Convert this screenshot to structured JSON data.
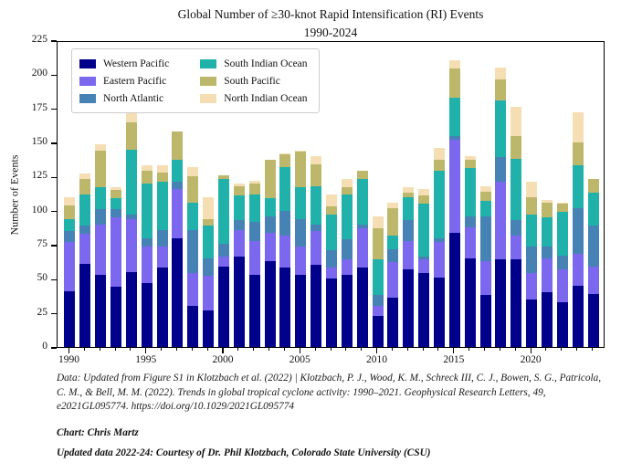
{
  "title": {
    "line1": "Global Number of ≥30-knot Rapid Intensification (RI) Events",
    "line2": "1990-2024"
  },
  "y_axis": {
    "label": "Number of Events",
    "min": 0,
    "max": 225,
    "tick_step": 25
  },
  "x_axis": {
    "major_ticks": [
      1990,
      1995,
      2000,
      2005,
      2010,
      2015,
      2020
    ]
  },
  "legend": {
    "position": "upper left",
    "items": [
      {
        "label": "Western Pacific",
        "color": "#00008b"
      },
      {
        "label": "Eastern Pacific",
        "color": "#7b68ee"
      },
      {
        "label": "North Atlantic",
        "color": "#4682b4"
      },
      {
        "label": "South Indian Ocean",
        "color": "#20b2aa"
      },
      {
        "label": "South Pacific",
        "color": "#bdb76b"
      },
      {
        "label": "North Indian Ocean",
        "color": "#f5deb3"
      }
    ]
  },
  "chart_data": {
    "type": "bar",
    "stacked": true,
    "title": "Global Number of ≥30-knot Rapid Intensification (RI) Events 1990-2024",
    "xlabel": "",
    "ylabel": "Number of Events",
    "ylim": [
      0,
      225
    ],
    "xlim": [
      1989.2,
      2024.8
    ],
    "grid": false,
    "legend_position": "upper left",
    "categories": [
      1990,
      1991,
      1992,
      1993,
      1994,
      1995,
      1996,
      1997,
      1998,
      1999,
      2000,
      2001,
      2002,
      2003,
      2004,
      2005,
      2006,
      2007,
      2008,
      2009,
      2010,
      2011,
      2012,
      2013,
      2014,
      2015,
      2016,
      2017,
      2018,
      2019,
      2020,
      2021,
      2022,
      2023,
      2024
    ],
    "series": [
      {
        "name": "Western Pacific",
        "color": "#00008b",
        "values": [
          41,
          61,
          53,
          44,
          55,
          47,
          58,
          80,
          30,
          27,
          59,
          66,
          53,
          63,
          58,
          53,
          60,
          50,
          53,
          58,
          23,
          36,
          57,
          54,
          51,
          84,
          65,
          38,
          64,
          64,
          35,
          40,
          33,
          45,
          39
        ]
      },
      {
        "name": "Eastern Pacific",
        "color": "#7b68ee",
        "values": [
          36,
          22,
          37,
          51,
          39,
          27,
          16,
          36,
          24,
          25,
          7,
          20,
          25,
          21,
          24,
          21,
          25,
          8,
          11,
          29,
          7,
          26,
          21,
          10,
          26,
          68,
          23,
          25,
          57,
          18,
          19,
          25,
          24,
          23,
          20
        ]
      },
      {
        "name": "North Atlantic",
        "color": "#4682b4",
        "values": [
          8,
          6,
          11,
          6,
          3,
          6,
          12,
          5,
          32,
          13,
          10,
          7,
          14,
          12,
          18,
          20,
          5,
          13,
          15,
          3,
          8,
          10,
          15,
          2,
          3,
          3,
          8,
          33,
          18,
          11,
          20,
          9,
          10,
          34,
          30
        ]
      },
      {
        "name": "South Indian Ocean",
        "color": "#20b2aa",
        "values": [
          9,
          23,
          16,
          8,
          48,
          40,
          35,
          16,
          20,
          24,
          47,
          18,
          20,
          13,
          32,
          23,
          28,
          26,
          33,
          33,
          26,
          10,
          17,
          39,
          49,
          28,
          35,
          11,
          42,
          45,
          23,
          21,
          32,
          31,
          24
        ]
      },
      {
        "name": "South Pacific",
        "color": "#bdb76b",
        "values": [
          10,
          11,
          27,
          6,
          20,
          9,
          7,
          21,
          19,
          5,
          3,
          7,
          8,
          28,
          9,
          26,
          16,
          6,
          5,
          6,
          23,
          20,
          3,
          6,
          8,
          21,
          6,
          7,
          15,
          17,
          13,
          11,
          6,
          17,
          10
        ]
      },
      {
        "name": "North Indian Ocean",
        "color": "#f5deb3",
        "values": [
          6,
          4,
          5,
          2,
          7,
          4,
          5,
          0,
          7,
          16,
          0,
          2,
          2,
          0,
          1,
          1,
          6,
          9,
          6,
          0,
          9,
          4,
          4,
          5,
          9,
          6,
          3,
          4,
          9,
          21,
          11,
          2,
          1,
          22,
          0
        ]
      }
    ]
  },
  "footer": {
    "citation": "Data: Updated from Figure S1 in Klotzbach et al. (2022) | Klotzbach, P. J., Wood, K. M., Schreck III, C. J., Bowen, S. G., Patricola, C. M., & Bell, M. M. (2022). Trends in global tropical cyclone activity: 1990–2021. Geophysical Research Letters, 49, e2021GL095774. https://doi.org/10.1029/2021GL095774",
    "credit": "Chart: Chris Martz",
    "update_note": "Updated data 2022-24: Courtesy of Dr. Phil Klotzbach, Colorado State University (CSU)"
  }
}
